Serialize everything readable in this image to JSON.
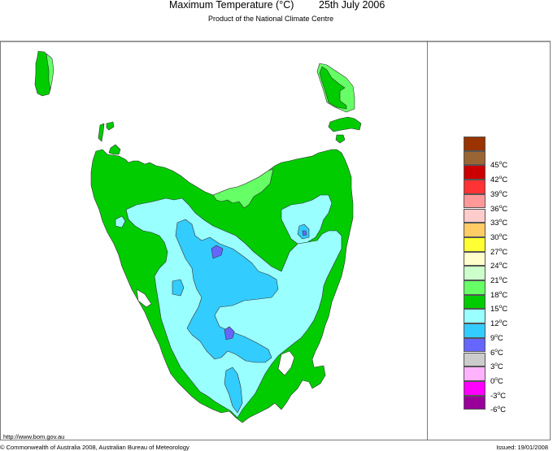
{
  "header": {
    "title": "Maximum Temperature (°C)",
    "date": "25th July 2006",
    "subtitle": "Product of the National Climate Centre"
  },
  "map": {
    "region": "Tasmania",
    "variable": "Maximum Temperature",
    "units": "°C",
    "colors": {
      "water": "#ffffff",
      "band_15_18": "#66ff66",
      "band_12_15": "#00cc00",
      "band_9_12": "#99ffff",
      "band_6_9": "#33ccff",
      "band_3_6": "#6666ff",
      "contour": "#333333"
    }
  },
  "legend": {
    "items": [
      {
        "label": "",
        "color": "#993300"
      },
      {
        "label": "45",
        "color": "#996633"
      },
      {
        "label": "42",
        "color": "#cc0000"
      },
      {
        "label": "39",
        "color": "#ff3333"
      },
      {
        "label": "36",
        "color": "#ff9999"
      },
      {
        "label": "33",
        "color": "#ffcccc"
      },
      {
        "label": "30",
        "color": "#ffcc66"
      },
      {
        "label": "27",
        "color": "#ffff33"
      },
      {
        "label": "24",
        "color": "#ffffcc"
      },
      {
        "label": "21",
        "color": "#ccffcc"
      },
      {
        "label": "18",
        "color": "#66ff66"
      },
      {
        "label": "15",
        "color": "#00cc00"
      },
      {
        "label": "12",
        "color": "#99ffff"
      },
      {
        "label": "9",
        "color": "#33ccff"
      },
      {
        "label": "6",
        "color": "#6666ff"
      },
      {
        "label": "3",
        "color": "#cccccc"
      },
      {
        "label": "0",
        "color": "#ffb3ff"
      },
      {
        "label": "-3",
        "color": "#ff00ff"
      },
      {
        "label": "-6",
        "color": "#990099"
      }
    ],
    "unit_suffix": "C"
  },
  "footer": {
    "url": "http://www.bom.gov.au",
    "copyright": "© Commonwealth of Australia 2008, Australian Bureau of Meteorology",
    "issued": "Issued: 19/01/2008"
  }
}
